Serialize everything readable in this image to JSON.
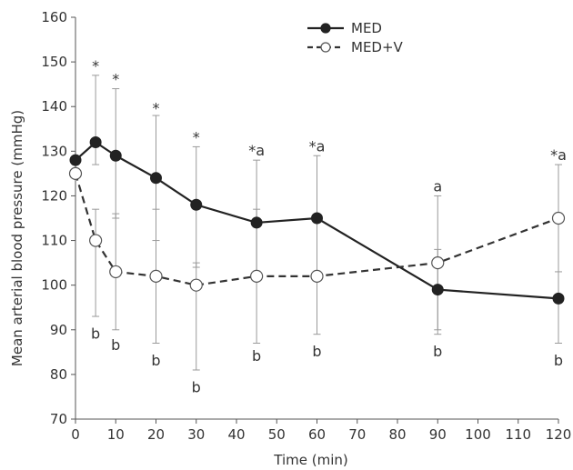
{
  "chart_data": {
    "type": "line",
    "xlabel": "Time (min)",
    "ylabel": "Mean arterial blood pressure (mmHg)",
    "xlim": [
      0,
      120
    ],
    "ylim": [
      70,
      160
    ],
    "xticks": [
      0,
      10,
      20,
      30,
      40,
      50,
      60,
      70,
      80,
      90,
      100,
      110,
      120
    ],
    "yticks": [
      70,
      80,
      90,
      100,
      110,
      120,
      130,
      140,
      150,
      160
    ],
    "grid": false,
    "legend_position": "top-right",
    "series": [
      {
        "name": "MED",
        "style": "solid",
        "marker": "filled-circle",
        "color": "#222222",
        "x": [
          0,
          5,
          10,
          20,
          30,
          45,
          60,
          90,
          120
        ],
        "y": [
          128,
          132,
          129,
          124,
          118,
          114,
          115,
          99,
          97
        ],
        "err_low": [
          null,
          127,
          115,
          110,
          104,
          101,
          101,
          89,
          null
        ],
        "err_high": [
          null,
          147,
          144,
          138,
          131,
          128,
          129,
          108,
          127
        ]
      },
      {
        "name": "MED+V",
        "style": "dashed",
        "marker": "open-circle",
        "color": "#333333",
        "x": [
          0,
          5,
          10,
          20,
          30,
          45,
          60,
          90,
          120
        ],
        "y": [
          125,
          110,
          103,
          102,
          100,
          102,
          102,
          105,
          115
        ],
        "err_low": [
          null,
          93,
          90,
          87,
          81,
          87,
          89,
          90,
          87
        ],
        "err_high": [
          null,
          117,
          116,
          117,
          105,
          117,
          115,
          120,
          103
        ]
      }
    ],
    "annotations": [
      {
        "x": 5,
        "y": 148,
        "text": "*"
      },
      {
        "x": 10,
        "y": 145,
        "text": "*"
      },
      {
        "x": 20,
        "y": 138.5,
        "text": "*"
      },
      {
        "x": 30,
        "y": 132,
        "text": "*"
      },
      {
        "x": 45,
        "y": 129,
        "text": "*a"
      },
      {
        "x": 60,
        "y": 130,
        "text": "*a"
      },
      {
        "x": 90,
        "y": 121,
        "text": "a"
      },
      {
        "x": 120,
        "y": 128,
        "text": "*a"
      },
      {
        "x": 5,
        "y": 88,
        "text": "b"
      },
      {
        "x": 10,
        "y": 85.5,
        "text": "b"
      },
      {
        "x": 20,
        "y": 82,
        "text": "b"
      },
      {
        "x": 30,
        "y": 76,
        "text": "b"
      },
      {
        "x": 45,
        "y": 83,
        "text": "b"
      },
      {
        "x": 60,
        "y": 84,
        "text": "b"
      },
      {
        "x": 90,
        "y": 84,
        "text": "b"
      },
      {
        "x": 120,
        "y": 82,
        "text": "b"
      }
    ]
  }
}
